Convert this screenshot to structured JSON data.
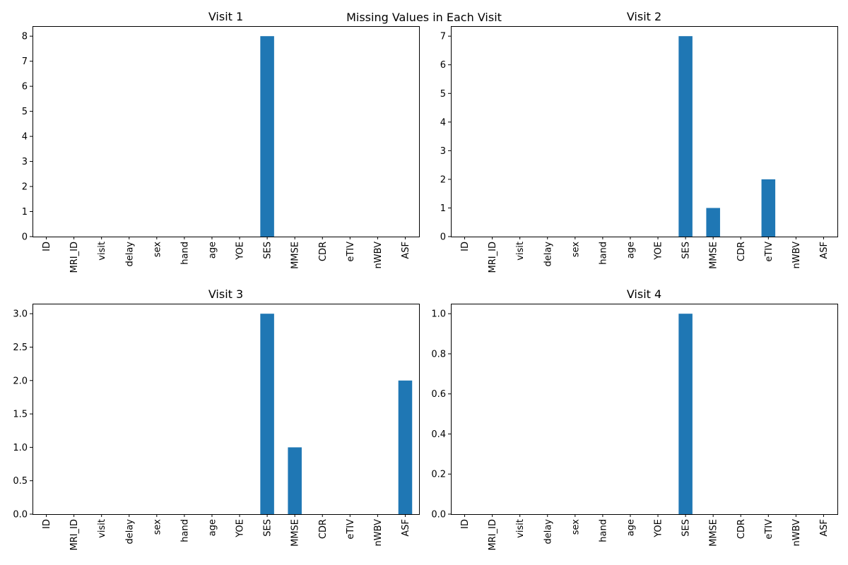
{
  "figure": {
    "title": "Missing Values in Each Visit"
  },
  "chart_data": [
    {
      "type": "bar",
      "title": "Visit 1",
      "xlabel": "",
      "ylabel": "",
      "categories": [
        "ID",
        "MRI_ID",
        "visit",
        "delay",
        "sex",
        "hand",
        "age",
        "YOE",
        "SES",
        "MMSE",
        "CDR",
        "eTIV",
        "nWBV",
        "ASF"
      ],
      "values": [
        0,
        0,
        0,
        0,
        0,
        0,
        0,
        0,
        8,
        0,
        0,
        0,
        0,
        0
      ],
      "ylim": [
        0,
        8.4
      ],
      "yticks": [
        0,
        1,
        2,
        3,
        4,
        5,
        6,
        7,
        8
      ],
      "ytick_labels": [
        "0",
        "1",
        "2",
        "3",
        "4",
        "5",
        "6",
        "7",
        "8"
      ],
      "color": "#1f77b4",
      "grid": false
    },
    {
      "type": "bar",
      "title": "Visit 2",
      "xlabel": "",
      "ylabel": "",
      "categories": [
        "ID",
        "MRI_ID",
        "visit",
        "delay",
        "sex",
        "hand",
        "age",
        "YOE",
        "SES",
        "MMSE",
        "CDR",
        "eTIV",
        "nWBV",
        "ASF"
      ],
      "values": [
        0,
        0,
        0,
        0,
        0,
        0,
        0,
        0,
        7,
        1,
        0,
        2,
        0,
        0
      ],
      "ylim": [
        0,
        7.35
      ],
      "yticks": [
        0,
        1,
        2,
        3,
        4,
        5,
        6,
        7
      ],
      "ytick_labels": [
        "0",
        "1",
        "2",
        "3",
        "4",
        "5",
        "6",
        "7"
      ],
      "color": "#1f77b4",
      "grid": false
    },
    {
      "type": "bar",
      "title": "Visit 3",
      "xlabel": "",
      "ylabel": "",
      "categories": [
        "ID",
        "MRI_ID",
        "visit",
        "delay",
        "sex",
        "hand",
        "age",
        "YOE",
        "SES",
        "MMSE",
        "CDR",
        "eTIV",
        "nWBV",
        "ASF"
      ],
      "values": [
        0,
        0,
        0,
        0,
        0,
        0,
        0,
        0,
        3,
        1,
        0,
        0,
        0,
        2
      ],
      "ylim": [
        0,
        3.15
      ],
      "yticks": [
        0,
        0.5,
        1,
        1.5,
        2,
        2.5,
        3
      ],
      "ytick_labels": [
        "0.0",
        "0.5",
        "1.0",
        "1.5",
        "2.0",
        "2.5",
        "3.0"
      ],
      "color": "#1f77b4",
      "grid": false
    },
    {
      "type": "bar",
      "title": "Visit 4",
      "xlabel": "",
      "ylabel": "",
      "categories": [
        "ID",
        "MRI_ID",
        "visit",
        "delay",
        "sex",
        "hand",
        "age",
        "YOE",
        "SES",
        "MMSE",
        "CDR",
        "eTIV",
        "nWBV",
        "ASF"
      ],
      "values": [
        0,
        0,
        0,
        0,
        0,
        0,
        0,
        0,
        1,
        0,
        0,
        0,
        0,
        0
      ],
      "ylim": [
        0,
        1.05
      ],
      "yticks": [
        0,
        0.2,
        0.4,
        0.6,
        0.8,
        1
      ],
      "ytick_labels": [
        "0.0",
        "0.2",
        "0.4",
        "0.6",
        "0.8",
        "1.0"
      ],
      "color": "#1f77b4",
      "grid": false
    }
  ]
}
